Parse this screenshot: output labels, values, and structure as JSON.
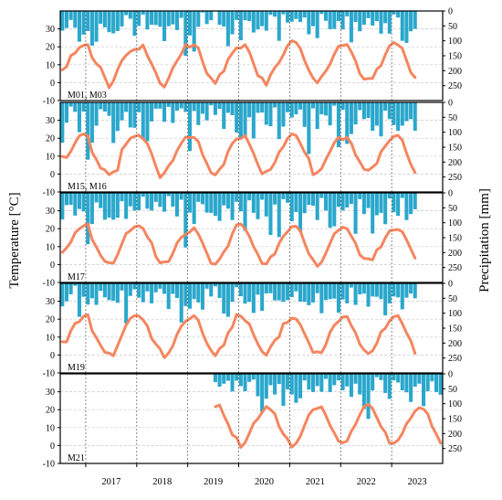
{
  "chart_data": {
    "type": "bar+line",
    "ylabel_left": "Temperature [°C]",
    "ylabel_right": "Precipitation [mm]",
    "x_years": [
      "2017",
      "2018",
      "2019",
      "2020",
      "2021",
      "2022",
      "2023"
    ],
    "x_range": [
      "2016-07",
      "2023-12"
    ],
    "temperature_ylim": [
      -10,
      40
    ],
    "temperature_ticks": [
      -10,
      0,
      10,
      20,
      30
    ],
    "precipitation_ylim": [
      0,
      300
    ],
    "precipitation_ticks": [
      0,
      50,
      100,
      150,
      200,
      250
    ],
    "precipitation_axis_inverted": true,
    "grid": "horizontal dashed",
    "bar_color": "#2aa7cc",
    "line_color": "#f5855f",
    "panels": [
      {
        "label": "M01, M03",
        "start": "2016-07",
        "temperature": [
          7.1,
          8.9,
          15.1,
          16.5,
          19.6,
          20.8,
          21.2,
          14.0,
          10.5,
          8.6,
          2.9,
          -2.8,
          0.9,
          7.3,
          12.3,
          15.2,
          17.4,
          18.5,
          18.6,
          21.0,
          15.0,
          10.5,
          5.5,
          -0.4,
          -2.5,
          2.4,
          8.2,
          12.2,
          16.0,
          21.2,
          19.8,
          21.1,
          19.3,
          11.7,
          5.2,
          2.5,
          -0.5,
          4.4,
          6.4,
          13.0,
          16.5,
          19.4,
          19.3,
          21.2,
          17.2,
          10.6,
          3.9,
          2.7,
          -1.5,
          4.4,
          8.4,
          11.2,
          15.5,
          20.6,
          23.4,
          22.4,
          19.1,
          12.3,
          6.9,
          2.6,
          -0.2,
          3.4,
          6.4,
          10.4,
          15.9,
          20.3,
          20.7,
          21.3,
          17.2,
          12.1,
          5.0,
          1.9,
          2.3,
          2.4,
          7.5,
          9.6,
          15.6,
          20.6,
          22.4,
          21.0,
          19.1,
          12.4,
          5.7,
          2.9
        ],
        "precipitation": [
          66,
          57,
          30,
          56,
          103,
          79,
          67,
          116,
          103,
          43,
          55,
          71,
          75,
          67,
          52,
          14,
          26,
          83,
          50,
          12,
          62,
          46,
          47,
          53,
          101,
          51,
          45,
          64,
          23,
          150,
          82,
          136,
          53,
          5,
          44,
          31,
          2,
          46,
          52,
          118,
          78,
          30,
          98,
          31,
          34,
          72,
          62,
          51,
          66,
          13,
          19,
          100,
          11,
          39,
          36,
          27,
          37,
          22,
          78,
          51,
          91,
          10,
          33,
          61,
          60,
          34,
          62,
          18,
          105,
          37,
          68,
          46,
          24,
          49,
          34,
          76,
          41,
          76,
          12,
          22,
          100,
          107,
          68,
          60
        ]
      },
      {
        "label": "M15, M16",
        "start": "2016-07",
        "temperature": [
          9.8,
          9.2,
          12.7,
          17.4,
          21.4,
          22.4,
          21.2,
          12.1,
          8.1,
          3.3,
          2.3,
          -0.4,
          1.2,
          2.1,
          13.6,
          16.7,
          20.0,
          21.0,
          21.7,
          19.6,
          17.0,
          11.4,
          4.4,
          -2.0,
          0.6,
          4.6,
          7.5,
          13.1,
          17.2,
          20.6,
          20.4,
          20.4,
          18.1,
          10.8,
          5.9,
          0.7,
          -0.5,
          2.7,
          5.4,
          12.6,
          17.1,
          19.6,
          19.8,
          21.5,
          16.7,
          11.5,
          5.3,
          0.1,
          1.5,
          2.6,
          6.4,
          12.2,
          15.2,
          19.8,
          22.4,
          21.5,
          17.1,
          12.2,
          8.7,
          -0.4,
          0.9,
          3.0,
          8.1,
          12.6,
          17.5,
          20.5,
          19.2,
          20.4,
          17.2,
          10.7,
          6.8,
          2.6,
          2.1,
          3.9,
          5.9,
          12.5,
          15.6,
          18.6,
          21.0,
          21.6,
          18.9,
          11.7,
          5.4,
          0.8
        ],
        "precipitation": [
          135,
          68,
          14,
          32,
          100,
          31,
          192,
          135,
          78,
          23,
          31,
          45,
          136,
          96,
          60,
          32,
          84,
          85,
          33,
          122,
          130,
          64,
          21,
          21,
          65,
          15,
          69,
          28,
          20,
          32,
          163,
          29,
          76,
          38,
          60,
          10,
          42,
          22,
          89,
          35,
          43,
          101,
          120,
          118,
          50,
          121,
          35,
          34,
          75,
          80,
          17,
          123,
          81,
          33,
          51,
          40,
          24,
          82,
          173,
          20,
          89,
          40,
          44,
          77,
          11,
          150,
          25,
          139,
          106,
          74,
          26,
          56,
          52,
          95,
          78,
          114,
          28,
          56,
          76,
          95,
          78,
          63,
          56,
          95
        ]
      },
      {
        "label": "M17",
        "start": "2016-07",
        "temperature": [
          6.8,
          9.3,
          12.6,
          17.7,
          20.0,
          21.6,
          22.7,
          14.0,
          9.8,
          5.1,
          1.8,
          1.0,
          0.7,
          5.5,
          11.5,
          17.3,
          18.9,
          21.1,
          21.6,
          20.1,
          15.4,
          12.2,
          4.5,
          0.9,
          1.5,
          1.6,
          6.2,
          12.1,
          15.2,
          16.9,
          18.1,
          20.5,
          17.0,
          12.0,
          6.4,
          0.6,
          0.2,
          3.0,
          7.1,
          10.3,
          17.2,
          22.2,
          22.6,
          20.0,
          15.8,
          10.0,
          5.7,
          0.6,
          0.3,
          4.3,
          5.9,
          11.8,
          15.8,
          18.3,
          21.2,
          21.4,
          18.8,
          12.1,
          6.0,
          2.7,
          -1.0,
          1.3,
          6.3,
          11.8,
          17.2,
          19.1,
          20.8,
          20.0,
          15.9,
          11.9,
          5.4,
          3.4,
          3.2,
          2.6,
          8.2,
          9.8,
          14.9,
          18.8,
          19.3,
          19.5,
          18.3,
          13.8,
          8.7,
          3.6
        ],
        "precipitation": [
          89,
          41,
          40,
          76,
          54,
          62,
          172,
          104,
          32,
          51,
          90,
          83,
          90,
          83,
          28,
          87,
          45,
          59,
          58,
          13,
          53,
          59,
          30,
          47,
          63,
          11,
          46,
          79,
          23,
          183,
          66,
          104,
          30,
          38,
          66,
          67,
          77,
          94,
          42,
          53,
          91,
          30,
          62,
          127,
          25,
          67,
          88,
          23,
          79,
          141,
          39,
          148,
          21,
          33,
          95,
          64,
          130,
          68,
          40,
          43,
          91,
          17,
          59,
          117,
          112,
          47,
          59,
          49,
          37,
          137,
          21,
          71,
          51,
          136,
          75,
          67,
          105,
          19,
          65,
          77,
          17,
          91,
          71,
          55
        ]
      },
      {
        "label": "M19",
        "start": "2016-07",
        "temperature": [
          7.4,
          7.3,
          13.6,
          17.7,
          18.6,
          21.6,
          22.5,
          13.5,
          9.7,
          5.4,
          1.5,
          1.1,
          -0.4,
          5.3,
          11.0,
          16.7,
          20.4,
          22.0,
          21.8,
          19.6,
          16.2,
          9.3,
          6.1,
          3.4,
          -1.5,
          1.1,
          5.1,
          11.6,
          16.1,
          18.8,
          20.3,
          22.0,
          19.3,
          12.2,
          6.6,
          2.5,
          -0.4,
          3.6,
          5.5,
          12.4,
          15.6,
          22.6,
          21.7,
          19.2,
          17.4,
          11.4,
          6.2,
          1.9,
          -0.1,
          4.6,
          8.2,
          10.1,
          17.5,
          18.2,
          20.6,
          20.1,
          17.0,
          11.9,
          6.9,
          1.4,
          1.8,
          1.3,
          5.8,
          12.8,
          16.6,
          18.8,
          21.2,
          21.5,
          16.4,
          12.4,
          6.1,
          2.8,
          0.8,
          2.4,
          6.6,
          13.0,
          14.9,
          19.0,
          21.4,
          22.0,
          17.5,
          12.3,
          8.0,
          0.9
        ],
        "precipitation": [
          77,
          60,
          37,
          8,
          112,
          45,
          71,
          50,
          72,
          25,
          47,
          56,
          58,
          65,
          24,
          134,
          42,
          20,
          48,
          63,
          27,
          67,
          30,
          18,
          35,
          86,
          35,
          49,
          131,
          76,
          85,
          53,
          64,
          88,
          18,
          44,
          10,
          49,
          101,
          112,
          62,
          13,
          43,
          68,
          62,
          99,
          38,
          92,
          34,
          33,
          57,
          57,
          62,
          56,
          46,
          27,
          61,
          62,
          73,
          64,
          33,
          100,
          56,
          53,
          51,
          98,
          54,
          67,
          14,
          72,
          37,
          34,
          78,
          44,
          45,
          53,
          107,
          67,
          44,
          47,
          87,
          48,
          34,
          50
        ]
      },
      {
        "label": "M21",
        "start": "2019-07",
        "temperature": [
          21.7,
          22.6,
          16.8,
          12.0,
          5.9,
          4.4,
          -1.0,
          1.6,
          6.8,
          12.4,
          14.9,
          18.4,
          21.8,
          20.0,
          17.7,
          10.6,
          6.4,
          3.7,
          -0.9,
          1.2,
          5.2,
          11.2,
          17.1,
          20.0,
          20.7,
          21.6,
          16.8,
          11.2,
          7.0,
          2.4,
          1.5,
          2.5,
          8.0,
          11.8,
          17.2,
          21.7,
          23.1,
          20.7,
          15.6,
          10.5,
          7.4,
          1.2,
          1.3,
          3.0,
          6.7,
          12.2,
          15.3,
          19.2,
          21.1,
          20.3,
          17.6,
          10.7,
          6.4,
          1.4
        ],
        "precipitation": [
          28,
          43,
          33,
          23,
          59,
          23,
          41,
          58,
          27,
          19,
          75,
          127,
          83,
          38,
          69,
          34,
          107,
          52,
          69,
          97,
          82,
          22,
          53,
          61,
          41,
          60,
          17,
          61,
          38,
          22,
          55,
          42,
          77,
          33,
          69,
          118,
          151,
          56,
          11,
          21,
          64,
          84,
          22,
          29,
          55,
          62,
          94,
          43,
          33,
          108,
          58,
          25,
          61,
          70
        ]
      }
    ]
  }
}
